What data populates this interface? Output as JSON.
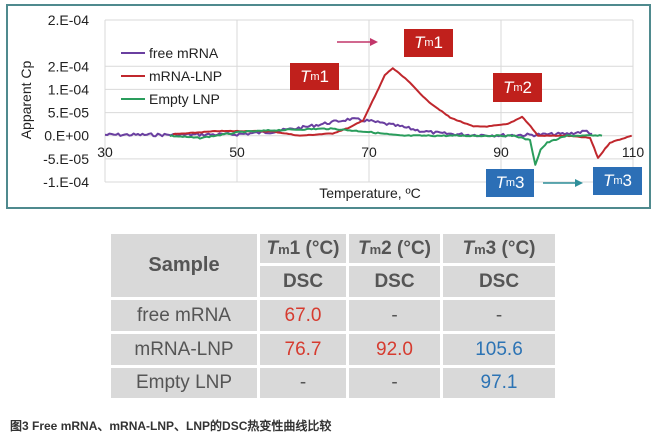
{
  "chart_data": {
    "type": "line",
    "xlabel": "Temperature, ºC",
    "ylabel": "Apparent Cp",
    "xlim": [
      30,
      110
    ],
    "ylim": [
      -0.0001,
      0.00025
    ],
    "x_ticks": [
      "30",
      "50",
      "70",
      "90",
      "110"
    ],
    "x_tick_values": [
      30,
      50,
      70,
      90,
      110
    ],
    "y_ticks": [
      "2.E-04",
      "2.E-04",
      "1.E-04",
      "5.E-05",
      "0.E+00",
      "-5.E-05",
      "-1.E-04"
    ],
    "y_tick_values": [
      0.00025,
      0.00015,
      0.0001,
      5e-05,
      0,
      -5e-05,
      -0.0001
    ],
    "grid": true,
    "legend_position": "top-left",
    "series": [
      {
        "name": "free mRNA",
        "color": "#6a3fa0",
        "x": [
          30,
          40,
          50,
          55,
          60,
          64,
          67.1,
          70,
          74.7,
          78,
          80.8,
          85,
          90,
          95,
          100,
          103,
          103.8
        ],
        "y": [
          2e-06,
          2e-06,
          3e-06,
          8e-06,
          1.8e-05,
          2.8e-05,
          3.6e-05,
          3.2e-05,
          2e-05,
          1e-05,
          5e-06,
          2e-06,
          1e-06,
          2e-06,
          4e-06,
          1e-05,
          4e-06
        ]
      },
      {
        "name": "mRNA-LNP",
        "color": "#c0272d",
        "x": [
          40.3,
          47,
          52.4,
          55.5,
          59.5,
          64.5,
          67.1,
          69.1,
          71.2,
          72.4,
          73.6,
          75.8,
          78.8,
          82.3,
          85.8,
          87.9,
          91,
          93.2,
          94.5,
          95.6,
          100,
          103.5,
          104.7,
          106.5,
          108,
          109.8
        ],
        "y": [
          3e-06,
          1e-05,
          1e-05,
          9e-06,
          0,
          5e-06,
          1.8e-05,
          3.3e-05,
          9.4e-05,
          0.000131,
          0.000146,
          0.00012,
          7.6e-05,
          3.9e-05,
          2e-05,
          2e-05,
          2.5e-05,
          4.1e-05,
          2e-05,
          0,
          0,
          -5e-06,
          -4.8e-05,
          -1.5e-05,
          -8e-06,
          0
        ]
      },
      {
        "name": "Empty LNP",
        "color": "#2a9d5c",
        "x": [
          39.8,
          44.4,
          50.5,
          56,
          62.6,
          64.5,
          70,
          74.7,
          85,
          92,
          94.4,
          95.2,
          96,
          97,
          100,
          105.3
        ],
        "y": [
          0,
          -5e-06,
          8e-06,
          1.2e-05,
          1.5e-05,
          1.5e-05,
          8e-06,
          0,
          0,
          0,
          -1e-05,
          -6.2e-05,
          -3e-05,
          -1.5e-05,
          0,
          0
        ]
      }
    ],
    "annotations": {
      "tm1_free": {
        "italic": "T",
        "sub": "m",
        "num": "1",
        "color": "#c0201c"
      },
      "tm1_lnp": {
        "italic": "T",
        "sub": "m",
        "num": "1",
        "color": "#c0201c"
      },
      "tm2_lnp": {
        "italic": "T",
        "sub": "m",
        "num": "2",
        "color": "#c0201c"
      },
      "tm3_empty": {
        "italic": "T",
        "sub": "m",
        "num": "3",
        "color": "#2c6fb6"
      },
      "tm3_lnp": {
        "italic": "T",
        "sub": "m",
        "num": "3",
        "color": "#2c6fb6"
      }
    }
  },
  "table": {
    "header": {
      "sample": "Sample",
      "cols": [
        {
          "italic": "T",
          "sub": "m",
          "rest": "1 (°C)",
          "method": "DSC"
        },
        {
          "italic": "T",
          "sub": "m",
          "rest": "2 (°C)",
          "method": "DSC"
        },
        {
          "italic": "T",
          "sub": "m",
          "rest": "3 (°C)",
          "method": "DSC"
        }
      ]
    },
    "rows": [
      {
        "sample": "free mRNA",
        "tm1": "67.0",
        "tm2": "-",
        "tm3": "-"
      },
      {
        "sample": "mRNA-LNP",
        "tm1": "76.7",
        "tm2": "92.0",
        "tm3": "105.6"
      },
      {
        "sample": "Empty LNP",
        "tm1": "-",
        "tm2": "-",
        "tm3": "97.1"
      }
    ]
  },
  "caption": "图3 Free mRNA、mRNA-LNP、LNP的DSC热变性曲线比较"
}
